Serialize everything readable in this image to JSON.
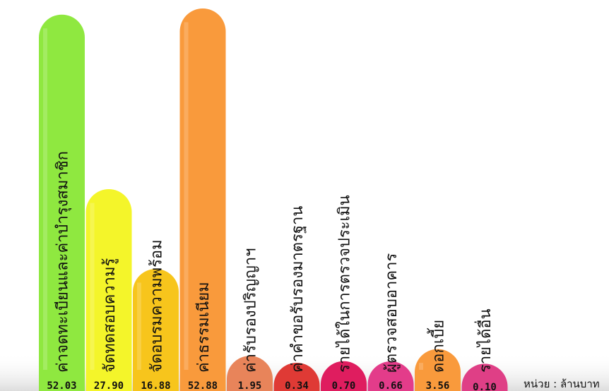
{
  "chart_data": {
    "type": "bar",
    "categories": [
      "ค่าจดทะเบียนและค่าบำรุงสมาชิก",
      "จัดทดสอบความรู้",
      "จัดอบรมความพร้อม",
      "ค่าธรรมเนียม",
      "ค่ารับรองปริญญาฯ",
      "ค่าคำขอรับรองมาตรฐาน",
      "รายได้ในการตรวจประเมิน",
      "ผู้ตรวจสอบอาคาร",
      "ดอกเบี้ย",
      "รายได้อื่น"
    ],
    "values": [
      52.03,
      27.9,
      16.88,
      52.88,
      1.95,
      0.34,
      0.7,
      0.66,
      3.56,
      0.1
    ],
    "value_labels": [
      "52.03",
      "27.90",
      "16.88",
      "52.88",
      "1.95",
      "0.34",
      "0.70",
      "0.66",
      "3.56",
      "0.10"
    ],
    "colors": [
      "#8fe840",
      "#f4f52a",
      "#f7c51c",
      "#f99a3c",
      "#e8845a",
      "#df3a35",
      "#df1d5f",
      "#e33c8a",
      "#f99a3c",
      "#df3f86"
    ],
    "unit_label": "หน่วย : ล้านบาท",
    "ylim": [
      0,
      52.88
    ],
    "title": "",
    "xlabel": "",
    "ylabel": "",
    "grid": false,
    "legend": "none"
  }
}
